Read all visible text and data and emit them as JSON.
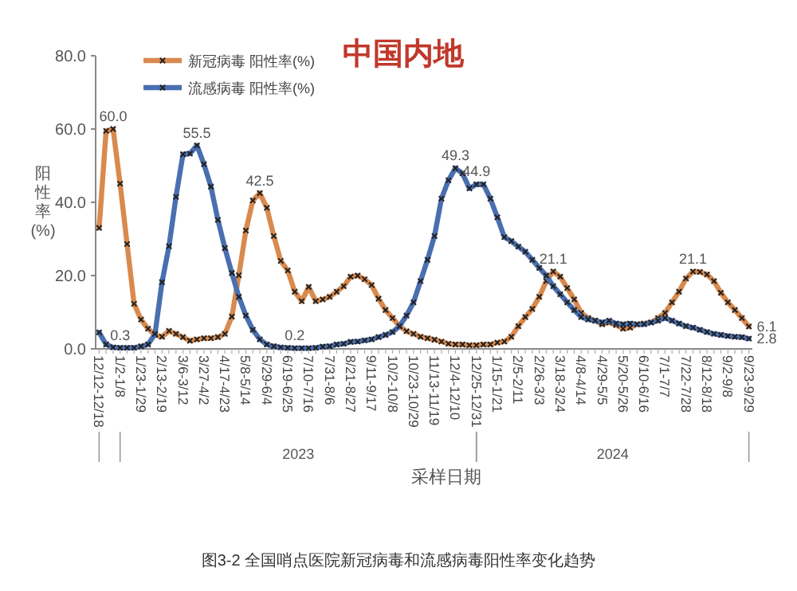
{
  "chart_data": {
    "type": "line",
    "title": "中国内地",
    "xlabel": "采样日期",
    "ylabel": "阳性率(%)",
    "categories": [
      "12/12-12/18",
      null,
      null,
      "1/2-1/8",
      null,
      null,
      "1/23-1/29",
      null,
      null,
      "2/13-2/19",
      null,
      null,
      "3/6-3/12",
      null,
      null,
      "3/27-4/2",
      null,
      null,
      "4/17-4/23",
      null,
      null,
      "5/8-5/14",
      null,
      null,
      "5/29-6/4",
      null,
      null,
      "6/19-6/25",
      null,
      null,
      "7/10-7/16",
      null,
      null,
      "7/31-8/6",
      null,
      null,
      "8/21-8/27",
      null,
      null,
      "9/11-9/17",
      null,
      null,
      "10/2-10/8",
      null,
      null,
      "10/23-10/29",
      null,
      null,
      "11/13-11/19",
      null,
      null,
      "12/4-12/10",
      null,
      null,
      "12/25-12/31",
      null,
      null,
      "1/15-1/21",
      null,
      null,
      "2/5-2/11",
      null,
      null,
      "2/26-3/3",
      null,
      null,
      "3/18-3/24",
      null,
      null,
      "4/8-4/14",
      null,
      null,
      "4/29-5/5",
      null,
      null,
      "5/20-5/26",
      null,
      null,
      "6/10-6/16",
      null,
      null,
      "7/1-7/7",
      null,
      null,
      "7/22-7/28",
      null,
      null,
      "8/12-8/18",
      null,
      null,
      "9/2-9/8",
      null,
      null,
      "9/23-9/29"
    ],
    "series": [
      {
        "name": "新冠病毒 阳性率(%)",
        "color": "#d98a4e",
        "values": [
          33.0,
          59.5,
          60.0,
          45.1,
          28.6,
          12.3,
          8.0,
          5.5,
          3.8,
          3.3,
          4.9,
          4.1,
          3.2,
          2.2,
          2.6,
          2.9,
          2.9,
          3.2,
          4.1,
          8.8,
          20.1,
          32.3,
          40.5,
          42.5,
          38.5,
          30.8,
          24.0,
          21.4,
          15.6,
          13.0,
          16.9,
          13.0,
          13.5,
          14.2,
          15.6,
          17.1,
          19.7,
          20.0,
          19.0,
          17.4,
          13.7,
          10.6,
          8.4,
          6.2,
          4.8,
          4.1,
          3.3,
          2.9,
          2.5,
          2.0,
          1.4,
          1.2,
          1.2,
          1.0,
          1.0,
          1.2,
          1.2,
          1.7,
          2.0,
          3.3,
          6.2,
          8.7,
          10.9,
          14.2,
          18.5,
          21.1,
          19.7,
          16.6,
          13.5,
          9.8,
          8.4,
          7.7,
          6.7,
          7.2,
          6.5,
          5.5,
          5.8,
          6.7,
          6.9,
          7.2,
          8.4,
          9.8,
          12.7,
          15.6,
          19.2,
          21.1,
          21.0,
          20.3,
          18.5,
          15.3,
          12.7,
          10.6,
          8.4,
          6.1
        ],
        "value_labels": [
          null,
          null,
          "60.0",
          null,
          null,
          null,
          null,
          null,
          null,
          null,
          null,
          null,
          null,
          null,
          null,
          null,
          null,
          null,
          null,
          null,
          null,
          null,
          null,
          "42.5",
          null,
          null,
          null,
          null,
          null,
          null,
          null,
          null,
          null,
          null,
          null,
          null,
          null,
          null,
          null,
          null,
          null,
          null,
          null,
          null,
          null,
          null,
          null,
          null,
          null,
          null,
          null,
          null,
          null,
          null,
          null,
          null,
          null,
          null,
          null,
          null,
          null,
          null,
          null,
          null,
          null,
          "21.1",
          null,
          null,
          null,
          null,
          null,
          null,
          null,
          null,
          null,
          null,
          null,
          null,
          null,
          null,
          null,
          null,
          null,
          null,
          null,
          "21.1",
          null,
          null,
          null,
          null,
          null,
          null,
          null,
          "6.1"
        ]
      },
      {
        "name": "流感病毒 阳性率(%)",
        "color": "#4a6fb0",
        "values": [
          4.5,
          1.2,
          0.4,
          0.3,
          0.3,
          0.3,
          0.7,
          1.2,
          4.1,
          18.2,
          28.0,
          41.5,
          53.1,
          53.3,
          55.5,
          50.4,
          44.3,
          35.2,
          27.5,
          20.7,
          14.2,
          9.1,
          5.2,
          2.6,
          1.2,
          0.7,
          0.4,
          0.3,
          0.2,
          0.2,
          0.2,
          0.3,
          0.6,
          0.7,
          1.2,
          1.4,
          1.9,
          2.0,
          2.3,
          2.6,
          3.2,
          3.8,
          4.6,
          6.2,
          9.1,
          12.7,
          18.5,
          24.3,
          30.8,
          41.0,
          46.0,
          49.3,
          47.9,
          43.8,
          44.9,
          44.9,
          41.0,
          35.9,
          30.5,
          29.4,
          27.9,
          26.5,
          24.3,
          22.1,
          20.0,
          17.1,
          14.9,
          12.7,
          10.6,
          8.7,
          8.0,
          7.7,
          7.2,
          7.7,
          6.9,
          6.7,
          6.9,
          6.7,
          6.7,
          7.2,
          7.7,
          8.4,
          7.7,
          6.9,
          6.2,
          5.8,
          5.2,
          4.6,
          4.1,
          3.8,
          3.5,
          3.3,
          3.2,
          2.8
        ],
        "value_labels": [
          null,
          null,
          null,
          "0.3",
          null,
          null,
          null,
          null,
          null,
          null,
          null,
          null,
          null,
          null,
          "55.5",
          null,
          null,
          null,
          null,
          null,
          null,
          null,
          null,
          null,
          null,
          null,
          null,
          null,
          "0.2",
          null,
          null,
          null,
          null,
          null,
          null,
          null,
          null,
          null,
          null,
          null,
          null,
          null,
          null,
          null,
          null,
          null,
          null,
          null,
          null,
          null,
          null,
          "49.3",
          null,
          null,
          "44.9",
          null,
          null,
          null,
          null,
          null,
          null,
          null,
          null,
          null,
          null,
          null,
          null,
          null,
          null,
          null,
          null,
          null,
          null,
          null,
          null,
          null,
          null,
          null,
          null,
          null,
          null,
          null,
          null,
          null,
          null,
          null,
          null,
          null,
          null,
          null,
          null,
          null,
          null,
          "2.8"
        ]
      }
    ],
    "ylim": [
      0,
      80
    ],
    "yticks": [
      {
        "value": 0,
        "label": "0.0"
      },
      {
        "value": 20,
        "label": "20.0"
      },
      {
        "value": 40,
        "label": "40.0"
      },
      {
        "value": 60,
        "label": "60.0"
      },
      {
        "value": 80,
        "label": "80.0"
      }
    ],
    "marker": "cross",
    "legend": "top left",
    "grid": false,
    "annotations": [
      "2023",
      "2024",
      "图3-2 全国哨点医院新冠病毒和流感病毒阳性率变化趋势"
    ]
  }
}
